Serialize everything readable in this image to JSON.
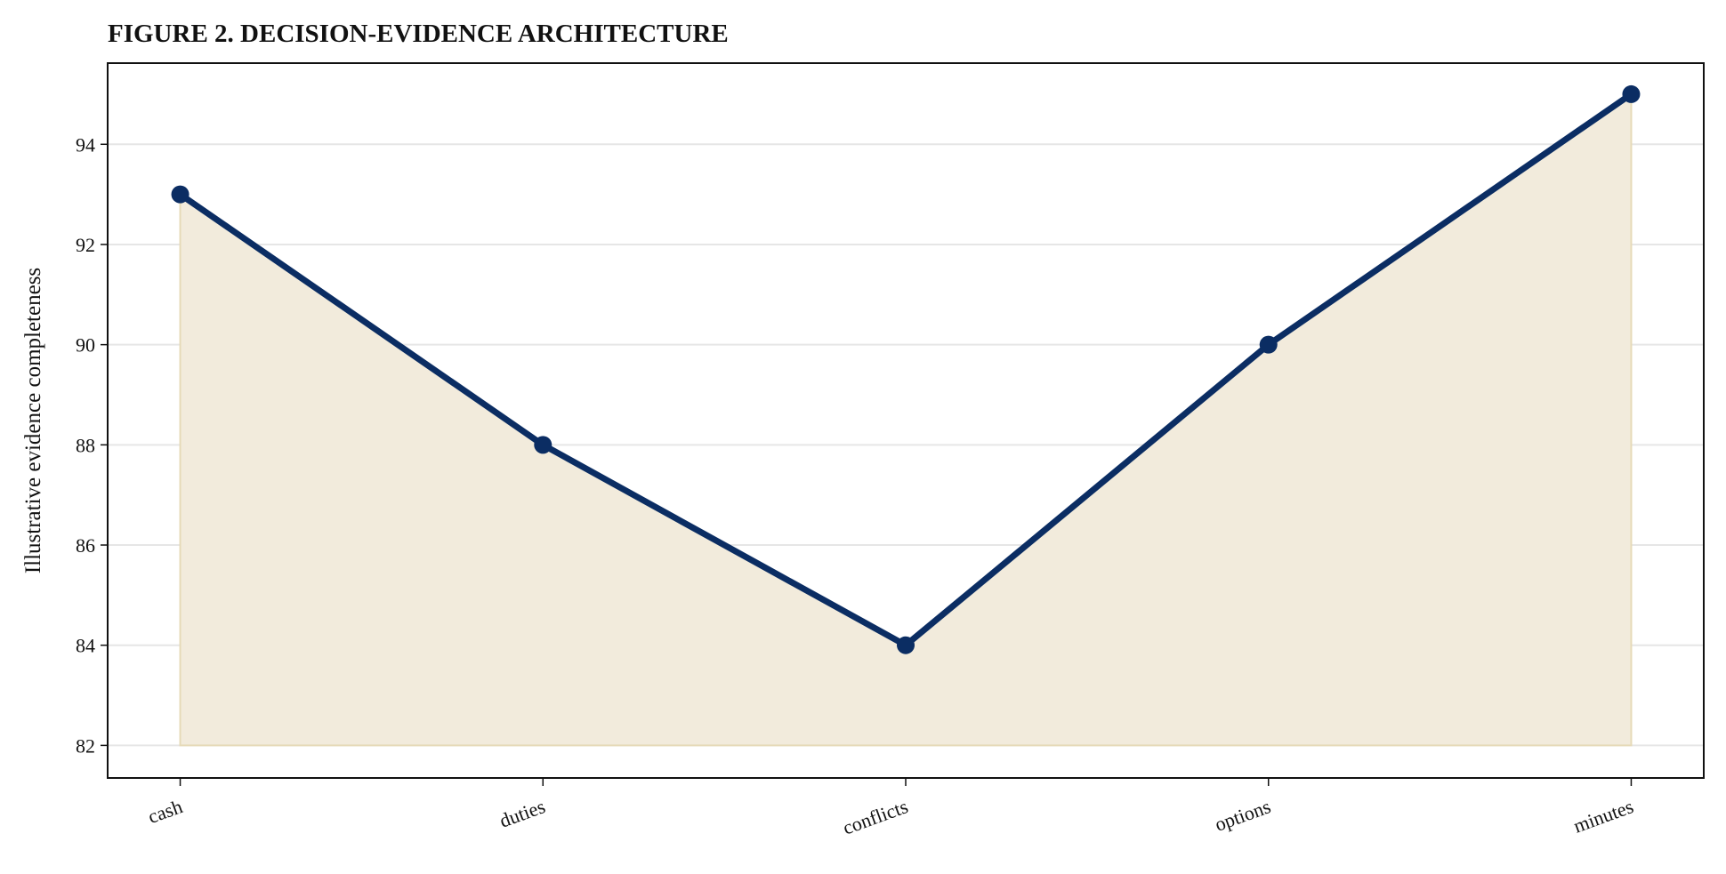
{
  "chart_data": {
    "type": "line",
    "title": "FIGURE 2. DECISION-EVIDENCE ARCHITECTURE",
    "y_label": "Illustrative evidence completeness",
    "categories": [
      "cash",
      "duties",
      "conflicts",
      "options",
      "minutes"
    ],
    "values": [
      93,
      88,
      84,
      90,
      95
    ],
    "color": "#0b2d63",
    "fill": {
      "color": "#f2ebdc",
      "to": 82
    },
    "ylim": [
      81.35,
      95.62
    ],
    "yticks": [
      82,
      84,
      86,
      88,
      90,
      92,
      94
    ],
    "grid": true
  }
}
